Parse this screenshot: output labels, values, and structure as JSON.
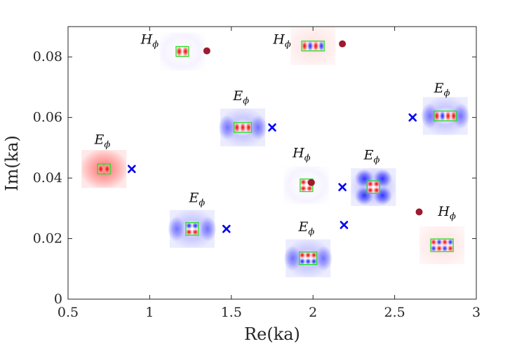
{
  "chart_data": {
    "type": "scatter",
    "title": "",
    "xlabel": "Re(ka)",
    "ylabel": "Im(ka)",
    "xlim": [
      0.5,
      3.0
    ],
    "ylim": [
      0,
      0.09
    ],
    "xticks": [
      0.5,
      1,
      1.5,
      2,
      2.5,
      3
    ],
    "xtick_labels": [
      "0.5",
      "1",
      "1.5",
      "2",
      "2.5",
      "3"
    ],
    "yticks": [
      0,
      0.02,
      0.04,
      0.06,
      0.08
    ],
    "ytick_labels": [
      "0",
      "0.02",
      "0.04",
      "0.06",
      "0.08"
    ],
    "colors": {
      "E": "#0000ee",
      "H": "#9b1b30",
      "frame": "#262626",
      "rect": "#22dd22"
    },
    "series": [
      {
        "name": "E_phi",
        "marker": "x",
        "color": "#0000ee",
        "points": [
          {
            "x": 0.89,
            "y": 0.043,
            "label": "E",
            "sub": "ϕ"
          },
          {
            "x": 1.47,
            "y": 0.0232,
            "label": "E",
            "sub": "ϕ"
          },
          {
            "x": 1.75,
            "y": 0.0567,
            "label": "E",
            "sub": "ϕ"
          },
          {
            "x": 2.19,
            "y": 0.0245,
            "label": "E",
            "sub": "ϕ"
          },
          {
            "x": 2.18,
            "y": 0.037,
            "label": "E",
            "sub": "ϕ"
          },
          {
            "x": 2.61,
            "y": 0.06,
            "label": "E",
            "sub": "ϕ"
          }
        ]
      },
      {
        "name": "H_phi",
        "marker": "o",
        "color": "#9b1b30",
        "points": [
          {
            "x": 1.35,
            "y": 0.082,
            "label": "H",
            "sub": "ϕ"
          },
          {
            "x": 2.18,
            "y": 0.0843,
            "label": "H",
            "sub": "ϕ"
          },
          {
            "x": 1.99,
            "y": 0.0385,
            "label": "H",
            "sub": "ϕ"
          },
          {
            "x": 2.65,
            "y": 0.0288,
            "label": "H",
            "sub": "ϕ"
          }
        ]
      }
    ],
    "insets": [
      {
        "cx": 1.2,
        "cy": 0.0818,
        "rows": 1,
        "cols": 2,
        "pattern": [
          [
            "r",
            "r"
          ]
        ],
        "halo": "w"
      },
      {
        "cx": 2.0,
        "cy": 0.0836,
        "rows": 1,
        "cols": 4,
        "pattern": [
          [
            "r",
            "b",
            "r",
            "b"
          ]
        ],
        "halo": "p"
      },
      {
        "cx": 0.72,
        "cy": 0.043,
        "rows": 1,
        "cols": 2,
        "pattern": [
          [
            "r",
            "r"
          ]
        ],
        "halo": "red"
      },
      {
        "cx": 1.57,
        "cy": 0.0567,
        "rows": 1,
        "cols": 3,
        "pattern": [
          [
            "r",
            "r",
            "r"
          ]
        ],
        "halo": "bwing"
      },
      {
        "cx": 2.81,
        "cy": 0.0605,
        "rows": 1,
        "cols": 4,
        "pattern": [
          [
            "r",
            "b",
            "r",
            "r"
          ]
        ],
        "halo": "bwing"
      },
      {
        "cx": 1.96,
        "cy": 0.0376,
        "rows": 2,
        "cols": 2,
        "pattern": [
          [
            "r",
            "r"
          ],
          [
            "r",
            "r"
          ]
        ],
        "halo": "w"
      },
      {
        "cx": 2.37,
        "cy": 0.037,
        "rows": 2,
        "cols": 2,
        "pattern": [
          [
            "r",
            "r"
          ],
          [
            "r",
            "r"
          ]
        ],
        "halo": "bquad"
      },
      {
        "cx": 1.26,
        "cy": 0.0232,
        "rows": 2,
        "cols": 2,
        "pattern": [
          [
            "b",
            "b"
          ],
          [
            "r",
            "r"
          ]
        ],
        "halo": "bwing"
      },
      {
        "cx": 1.97,
        "cy": 0.0135,
        "rows": 2,
        "cols": 3,
        "pattern": [
          [
            "r",
            "r",
            "r"
          ],
          [
            "b",
            "b",
            "b"
          ]
        ],
        "halo": "bwing"
      },
      {
        "cx": 2.79,
        "cy": 0.0178,
        "rows": 2,
        "cols": 4,
        "pattern": [
          [
            "r",
            "b",
            "r",
            "b"
          ],
          [
            "b",
            "r",
            "b",
            "r"
          ]
        ],
        "halo": "p"
      }
    ],
    "labels": [
      {
        "x": 1.0,
        "y": 0.0843,
        "text": "H",
        "sub": "ϕ"
      },
      {
        "x": 1.81,
        "y": 0.0843,
        "text": "H",
        "sub": "ϕ"
      },
      {
        "x": 0.71,
        "y": 0.0512,
        "text": "E",
        "sub": "ϕ"
      },
      {
        "x": 1.56,
        "y": 0.0657,
        "text": "E",
        "sub": "ϕ"
      },
      {
        "x": 2.79,
        "y": 0.0683,
        "text": "E",
        "sub": "ϕ"
      },
      {
        "x": 1.93,
        "y": 0.0468,
        "text": "H",
        "sub": "ϕ"
      },
      {
        "x": 2.36,
        "y": 0.0462,
        "text": "E",
        "sub": "ϕ"
      },
      {
        "x": 1.29,
        "y": 0.032,
        "text": "E",
        "sub": "ϕ"
      },
      {
        "x": 1.96,
        "y": 0.0225,
        "text": "E",
        "sub": "ϕ"
      },
      {
        "x": 2.82,
        "y": 0.0275,
        "text": "H",
        "sub": "ϕ"
      }
    ]
  }
}
